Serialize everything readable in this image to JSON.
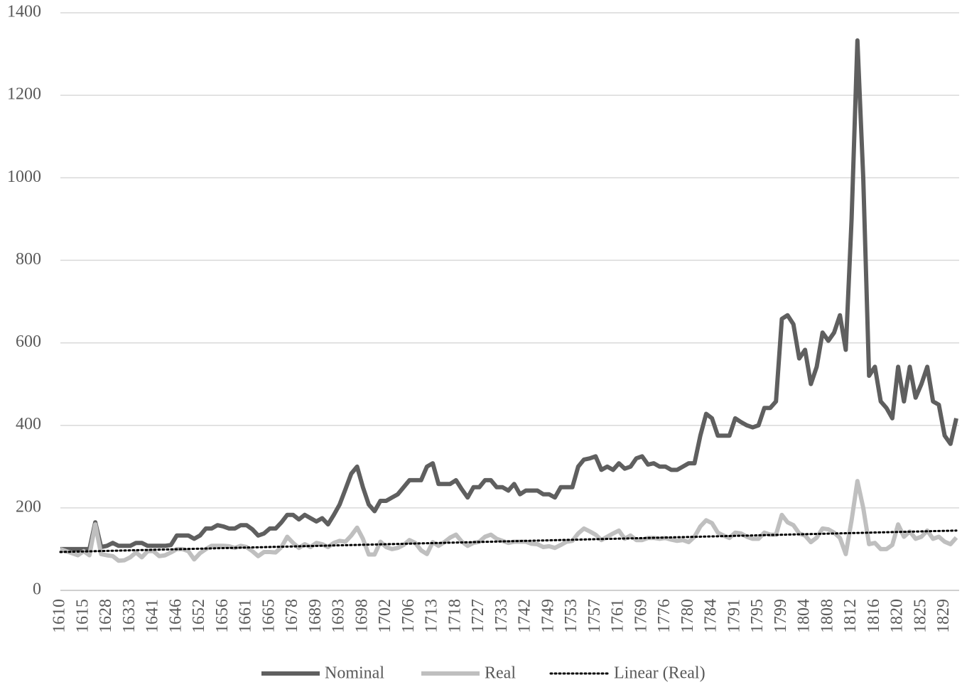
{
  "chart_data": {
    "type": "line",
    "categories": [
      "1610",
      null,
      null,
      null,
      "1615",
      null,
      null,
      null,
      "1628",
      null,
      null,
      null,
      "1633",
      null,
      null,
      null,
      "1641",
      null,
      null,
      null,
      "1646",
      null,
      null,
      null,
      "1652",
      null,
      null,
      null,
      "1656",
      null,
      null,
      null,
      "1661",
      null,
      null,
      null,
      "1665",
      null,
      null,
      null,
      "1678",
      null,
      null,
      null,
      "1689",
      null,
      null,
      null,
      "1693",
      null,
      null,
      null,
      "1698",
      null,
      null,
      null,
      "1702",
      null,
      null,
      null,
      "1706",
      null,
      null,
      null,
      "1713",
      null,
      null,
      null,
      "1718",
      null,
      null,
      null,
      "1727",
      null,
      null,
      null,
      "1733",
      null,
      null,
      null,
      "1742",
      null,
      null,
      null,
      "1749",
      null,
      null,
      null,
      "1753",
      null,
      null,
      null,
      "1757",
      null,
      null,
      null,
      "1761",
      null,
      null,
      null,
      "1769",
      null,
      null,
      null,
      "1776",
      null,
      null,
      null,
      "1780",
      null,
      null,
      null,
      "1784",
      null,
      null,
      null,
      "1791",
      null,
      null,
      null,
      "1795",
      null,
      null,
      null,
      "1799",
      null,
      null,
      null,
      "1804",
      null,
      null,
      null,
      "1808",
      null,
      null,
      null,
      "1812",
      null,
      null,
      null,
      "1816",
      null,
      null,
      null,
      "1820",
      null,
      null,
      null,
      "1825",
      null,
      null,
      null,
      "1829",
      null,
      null
    ],
    "series": [
      {
        "name": "Nominal",
        "color": "#5f5f5f",
        "values": [
          100,
          100,
          100,
          100,
          100,
          100,
          165,
          105,
          108,
          115,
          108,
          108,
          108,
          115,
          115,
          108,
          108,
          108,
          108,
          110,
          133,
          133,
          133,
          125,
          133,
          150,
          150,
          158,
          155,
          150,
          150,
          158,
          158,
          148,
          133,
          138,
          150,
          150,
          165,
          183,
          183,
          172,
          183,
          175,
          167,
          175,
          160,
          183,
          208,
          245,
          283,
          300,
          250,
          208,
          192,
          217,
          217,
          225,
          233,
          250,
          267,
          267,
          267,
          300,
          308,
          258,
          258,
          258,
          267,
          245,
          225,
          250,
          250,
          267,
          267,
          250,
          250,
          242,
          258,
          233,
          242,
          242,
          242,
          233,
          233,
          225,
          250,
          250,
          250,
          300,
          317,
          320,
          325,
          292,
          300,
          292,
          308,
          295,
          300,
          320,
          325,
          305,
          308,
          300,
          300,
          292,
          292,
          300,
          308,
          308,
          375,
          428,
          417,
          375,
          375,
          375,
          417,
          408,
          400,
          395,
          400,
          442,
          442,
          458,
          658,
          667,
          645,
          562,
          583,
          500,
          542,
          625,
          605,
          625,
          667,
          583,
          900,
          1333,
          1000,
          520,
          542,
          458,
          442,
          417,
          542,
          458,
          542,
          467,
          500,
          542,
          458,
          450,
          375,
          355,
          417
        ]
      },
      {
        "name": "Real",
        "color": "#bfbfbf",
        "values": [
          100,
          95,
          90,
          85,
          95,
          85,
          160,
          88,
          85,
          83,
          72,
          73,
          80,
          92,
          80,
          95,
          95,
          83,
          85,
          92,
          100,
          100,
          95,
          75,
          90,
          100,
          108,
          108,
          108,
          107,
          103,
          108,
          105,
          95,
          83,
          93,
          93,
          92,
          105,
          130,
          115,
          103,
          112,
          105,
          115,
          112,
          105,
          115,
          120,
          118,
          133,
          152,
          125,
          87,
          87,
          118,
          105,
          100,
          103,
          110,
          122,
          115,
          97,
          88,
          117,
          108,
          117,
          128,
          135,
          118,
          108,
          115,
          118,
          130,
          135,
          125,
          120,
          115,
          118,
          118,
          118,
          113,
          112,
          105,
          107,
          103,
          110,
          118,
          120,
          138,
          150,
          143,
          135,
          122,
          130,
          138,
          145,
          125,
          133,
          122,
          122,
          127,
          127,
          125,
          127,
          123,
          120,
          122,
          117,
          130,
          155,
          170,
          163,
          140,
          133,
          127,
          140,
          138,
          130,
          125,
          125,
          140,
          135,
          135,
          183,
          165,
          158,
          138,
          133,
          117,
          128,
          150,
          148,
          140,
          127,
          88,
          170,
          265,
          200,
          112,
          115,
          100,
          100,
          110,
          160,
          130,
          143,
          125,
          130,
          145,
          125,
          130,
          118,
          112,
          128
        ]
      }
    ],
    "trend": {
      "name": "Linear (Real)",
      "color": "#000000",
      "values": [
        93,
        145
      ]
    },
    "ylim": [
      0,
      1400
    ],
    "yticks": [
      0,
      200,
      400,
      600,
      800,
      1000,
      1200,
      1400
    ],
    "grid": true,
    "legend": "bottom"
  }
}
